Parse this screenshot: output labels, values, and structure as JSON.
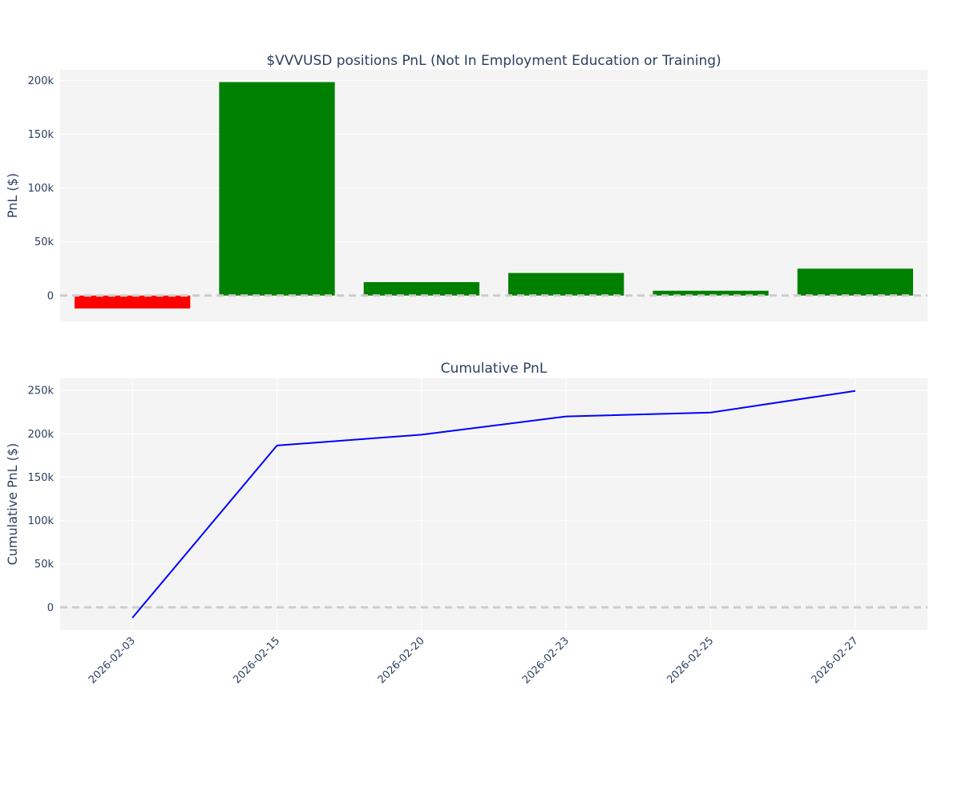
{
  "chart_data": [
    {
      "type": "bar",
      "title": "$VVVUSD positions PnL (Not In Employment Education or Training)",
      "xlabel": "",
      "ylabel": "PnL ($)",
      "categories": [
        "2026-02-03",
        "2026-02-15",
        "2026-02-20",
        "2026-02-23",
        "2026-02-25",
        "2026-02-27"
      ],
      "values": [
        -12000,
        198500,
        12500,
        21000,
        4500,
        25000
      ],
      "ylim": [
        -24000,
        210000
      ],
      "yticks": [
        0,
        50000,
        100000,
        150000,
        200000
      ],
      "ytick_labels": [
        "0",
        "50k",
        "100k",
        "150k",
        "200k"
      ],
      "zero_line": "dashed",
      "colors": {
        "positive": "#008000",
        "negative": "#ff0000"
      },
      "grid": true,
      "show_xticks": false
    },
    {
      "type": "line",
      "title": "Cumulative PnL",
      "xlabel": "",
      "ylabel": "Cumulative PnL ($)",
      "x": [
        "2026-02-03",
        "2026-02-15",
        "2026-02-20",
        "2026-02-23",
        "2026-02-25",
        "2026-02-27"
      ],
      "values": [
        -12000,
        186500,
        199000,
        220000,
        224500,
        249500
      ],
      "ylim": [
        -26000,
        264000
      ],
      "yticks": [
        0,
        50000,
        100000,
        150000,
        200000,
        250000
      ],
      "ytick_labels": [
        "0",
        "50k",
        "100k",
        "150k",
        "200k",
        "250k"
      ],
      "zero_line": "dashed",
      "color": "#0000ff",
      "grid": true,
      "show_xticks": true
    }
  ],
  "style": {
    "plot_bg": "#f4f4f4",
    "grid_color": "#ffffff",
    "zero_line_color": "#cccccc",
    "text_color": "#2a3f5f"
  }
}
